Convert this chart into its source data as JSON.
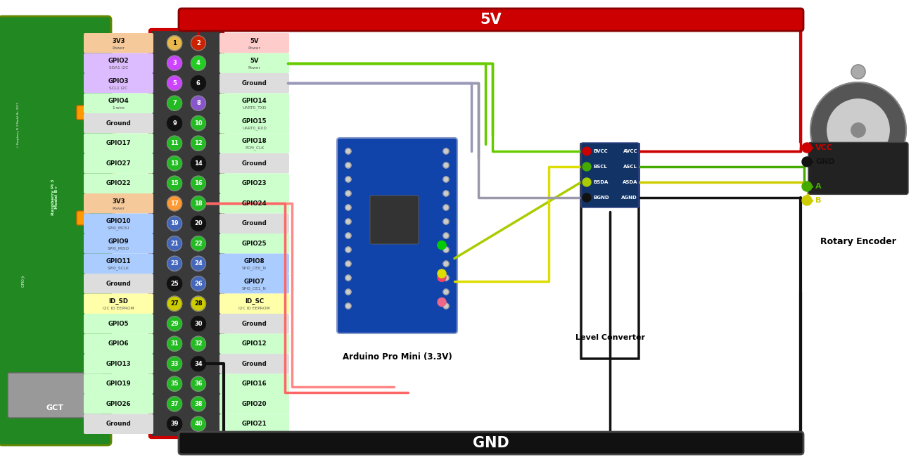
{
  "bg_color": "#ffffff",
  "figure_width": 13.12,
  "figure_height": 6.54,
  "gpio_rows": [
    {
      "row": 1,
      "ll": "3V3",
      "ls": "Power",
      "lc": "#f5c99a",
      "pl": 1,
      "plf": "#e8b84b",
      "pltc": "#000000",
      "rl": "5V",
      "rs": "Power",
      "rc": "#ffcccc",
      "pr": 2,
      "prf": "#cc2200",
      "prtc": "#ffffff"
    },
    {
      "row": 2,
      "ll": "GPIO2",
      "ls": "SDA1 I2C",
      "lc": "#ddbbff",
      "pl": 3,
      "plf": "#cc44ff",
      "pltc": "#ffffff",
      "rl": "5V",
      "rs": "Power",
      "rc": "#ccffcc",
      "pr": 4,
      "prf": "#22cc22",
      "prtc": "#ffffff"
    },
    {
      "row": 3,
      "ll": "GPIO3",
      "ls": "SCL1 I2C",
      "lc": "#ddbbff",
      "pl": 5,
      "plf": "#cc44ff",
      "pltc": "#ffffff",
      "rl": "Ground",
      "rs": "",
      "rc": "#dddddd",
      "pr": 6,
      "prf": "#111111",
      "prtc": "#ffffff"
    },
    {
      "row": 4,
      "ll": "GPIO4",
      "ls": "1-wire",
      "lc": "#ccffcc",
      "pl": 7,
      "plf": "#22bb22",
      "pltc": "#ffffff",
      "rl": "GPIO14",
      "rs": "UART0_TXD",
      "rc": "#ccffcc",
      "pr": 8,
      "prf": "#8855cc",
      "prtc": "#ffffff"
    },
    {
      "row": 5,
      "ll": "Ground",
      "ls": "",
      "lc": "#dddddd",
      "pl": 9,
      "plf": "#111111",
      "pltc": "#ffffff",
      "rl": "GPIO15",
      "rs": "UART0_RXD",
      "rc": "#ccffcc",
      "pr": 10,
      "prf": "#22bb22",
      "prtc": "#ffffff"
    },
    {
      "row": 6,
      "ll": "GPIO17",
      "ls": "",
      "lc": "#ccffcc",
      "pl": 11,
      "plf": "#22bb22",
      "pltc": "#ffffff",
      "rl": "GPIO18",
      "rs": "PCM_CLK",
      "rc": "#ccffcc",
      "pr": 12,
      "prf": "#22bb22",
      "prtc": "#ffffff"
    },
    {
      "row": 7,
      "ll": "GPIO27",
      "ls": "",
      "lc": "#ccffcc",
      "pl": 13,
      "plf": "#22bb22",
      "pltc": "#ffffff",
      "rl": "Ground",
      "rs": "",
      "rc": "#dddddd",
      "pr": 14,
      "prf": "#111111",
      "prtc": "#ffffff"
    },
    {
      "row": 8,
      "ll": "GPIO22",
      "ls": "",
      "lc": "#ccffcc",
      "pl": 15,
      "plf": "#22bb22",
      "pltc": "#ffffff",
      "rl": "GPIO23",
      "rs": "",
      "rc": "#ccffcc",
      "pr": 16,
      "prf": "#22bb22",
      "prtc": "#ffffff"
    },
    {
      "row": 9,
      "ll": "3V3",
      "ls": "Power",
      "lc": "#f5c99a",
      "pl": 17,
      "plf": "#ff9933",
      "pltc": "#ffffff",
      "rl": "GPIO24",
      "rs": "",
      "rc": "#ccffcc",
      "pr": 18,
      "prf": "#22bb22",
      "prtc": "#ffffff"
    },
    {
      "row": 10,
      "ll": "GPIO10",
      "ls": "SPI0_MOSI",
      "lc": "#aaccff",
      "pl": 19,
      "plf": "#4466bb",
      "pltc": "#ffffff",
      "rl": "Ground",
      "rs": "",
      "rc": "#dddddd",
      "pr": 20,
      "prf": "#111111",
      "prtc": "#ffffff"
    },
    {
      "row": 11,
      "ll": "GPIO9",
      "ls": "SPI0_MISO",
      "lc": "#aaccff",
      "pl": 21,
      "plf": "#4466bb",
      "pltc": "#ffffff",
      "rl": "GPIO25",
      "rs": "",
      "rc": "#ccffcc",
      "pr": 22,
      "prf": "#22bb22",
      "prtc": "#ffffff"
    },
    {
      "row": 12,
      "ll": "GPIO11",
      "ls": "SPI0_SCLK",
      "lc": "#aaccff",
      "pl": 23,
      "plf": "#4466bb",
      "pltc": "#ffffff",
      "rl": "GPIO8",
      "rs": "SPI0_CE0_N",
      "rc": "#aaccff",
      "pr": 24,
      "prf": "#4466bb",
      "prtc": "#ffffff"
    },
    {
      "row": 13,
      "ll": "Ground",
      "ls": "",
      "lc": "#dddddd",
      "pl": 25,
      "plf": "#111111",
      "pltc": "#ffffff",
      "rl": "GPIO7",
      "rs": "SPI0_CE1_N",
      "rc": "#aaccff",
      "pr": 26,
      "prf": "#4466bb",
      "prtc": "#ffffff"
    },
    {
      "row": 14,
      "ll": "ID_SD",
      "ls": "I2C ID EEPROM",
      "lc": "#ffffaa",
      "pl": 27,
      "plf": "#cccc00",
      "pltc": "#000000",
      "rl": "ID_SC",
      "rs": "I2C ID EEPROM",
      "rc": "#ffffaa",
      "pr": 28,
      "prf": "#cccc00",
      "prtc": "#000000"
    },
    {
      "row": 15,
      "ll": "GPIO5",
      "ls": "",
      "lc": "#ccffcc",
      "pl": 29,
      "plf": "#22bb22",
      "pltc": "#ffffff",
      "rl": "Ground",
      "rs": "",
      "rc": "#dddddd",
      "pr": 30,
      "prf": "#111111",
      "prtc": "#ffffff"
    },
    {
      "row": 16,
      "ll": "GPIO6",
      "ls": "",
      "lc": "#ccffcc",
      "pl": 31,
      "plf": "#22bb22",
      "pltc": "#ffffff",
      "rl": "GPIO12",
      "rs": "",
      "rc": "#ccffcc",
      "pr": 32,
      "prf": "#22bb22",
      "prtc": "#ffffff"
    },
    {
      "row": 17,
      "ll": "GPIO13",
      "ls": "",
      "lc": "#ccffcc",
      "pl": 33,
      "plf": "#22bb22",
      "pltc": "#ffffff",
      "rl": "Ground",
      "rs": "",
      "rc": "#dddddd",
      "pr": 34,
      "prf": "#111111",
      "prtc": "#ffffff"
    },
    {
      "row": 18,
      "ll": "GPIO19",
      "ls": "",
      "lc": "#ccffcc",
      "pl": 35,
      "plf": "#22bb22",
      "pltc": "#ffffff",
      "rl": "GPIO16",
      "rs": "",
      "rc": "#ccffcc",
      "pr": 36,
      "prf": "#22bb22",
      "prtc": "#ffffff"
    },
    {
      "row": 19,
      "ll": "GPIO26",
      "ls": "",
      "lc": "#ccffcc",
      "pl": 37,
      "plf": "#22bb22",
      "pltc": "#ffffff",
      "rl": "GPIO20",
      "rs": "",
      "rc": "#ccffcc",
      "pr": 38,
      "prf": "#22bb22",
      "prtc": "#ffffff"
    },
    {
      "row": 20,
      "ll": "Ground",
      "ls": "",
      "lc": "#dddddd",
      "pl": 39,
      "plf": "#111111",
      "pltc": "#ffffff",
      "rl": "GPIO21",
      "rs": "",
      "rc": "#ccffcc",
      "pr": 40,
      "prf": "#22bb22",
      "prtc": "#ffffff"
    }
  ]
}
